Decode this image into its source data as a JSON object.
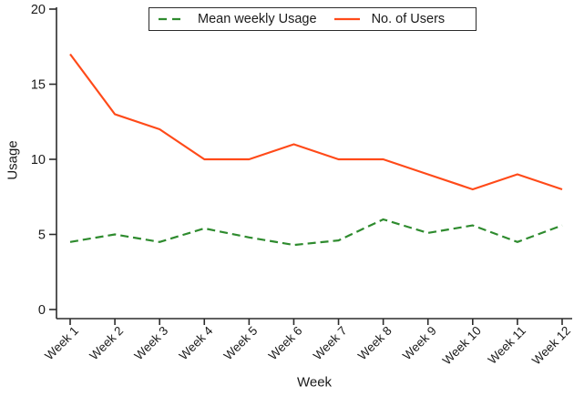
{
  "chart_data": {
    "type": "line",
    "title": "",
    "xlabel": "Week",
    "ylabel": "Usage",
    "categories": [
      "Week 1",
      "Week 2",
      "Week 3",
      "Week 4",
      "Week 5",
      "Week 6",
      "Week 7",
      "Week 8",
      "Week 9",
      "Week 10",
      "Week 11",
      "Week 12"
    ],
    "y_ticks": [
      "0",
      "5",
      "10",
      "15",
      "20"
    ],
    "y_tick_values": [
      0,
      5,
      10,
      15,
      20
    ],
    "ylim": [
      0,
      20
    ],
    "grid": false,
    "legend_position": "top-center",
    "series": [
      {
        "name": "Mean weekly Usage",
        "style": "dashed",
        "color": "#2e8b2e",
        "values": [
          4.5,
          5.0,
          4.5,
          5.4,
          4.8,
          4.3,
          4.6,
          6.0,
          5.1,
          5.6,
          4.5,
          5.6
        ]
      },
      {
        "name": "No. of Users",
        "style": "solid",
        "color": "#ff4a19",
        "values": [
          17,
          13,
          12,
          10,
          10,
          11,
          10,
          10,
          9,
          8,
          9,
          8
        ]
      }
    ],
    "axis_color": "#2b2b2b"
  }
}
